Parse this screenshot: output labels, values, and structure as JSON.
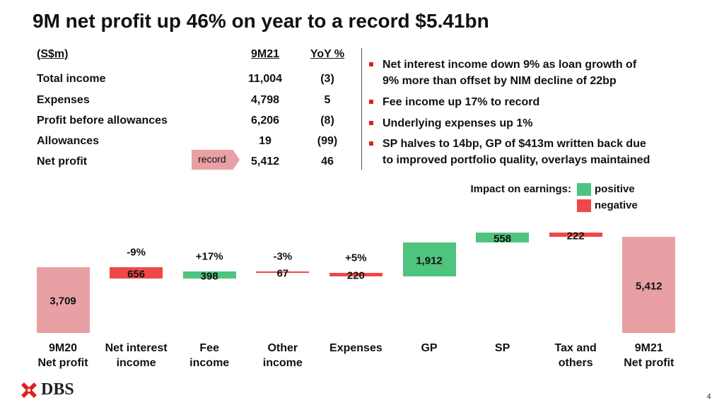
{
  "title": "9M net profit up 46% on year to a record $5.41bn",
  "table": {
    "header": [
      "(S$m)",
      "9M21",
      "YoY %"
    ],
    "rows": [
      [
        "Total income",
        "11,004",
        "(3)"
      ],
      [
        "Expenses",
        "4,798",
        "5"
      ],
      [
        "Profit before allowances",
        "6,206",
        "(8)"
      ],
      [
        "Allowances",
        "19",
        "(99)"
      ],
      [
        "Net profit",
        "5,412",
        "46"
      ]
    ],
    "callout": "record"
  },
  "bullets": [
    "Net interest income down 9% as loan growth of\n9% more than offset by NIM decline of 22bp",
    "Fee income up 17% to record",
    "Underlying expenses up 1%",
    "SP halves to 14bp, GP of $413m written back due\nto improved portfolio quality, overlays maintained"
  ],
  "chart_data": {
    "type": "waterfall",
    "legend_title": "Impact on earnings:",
    "legend": [
      {
        "label": "positive",
        "color": "#4fc47f"
      },
      {
        "label": "negative",
        "color": "#f04848"
      }
    ],
    "total_color": "#e8a0a4",
    "categories": [
      "9M20\nNet profit",
      "Net interest\nincome",
      "Fee\nincome",
      "Other\nincome",
      "Expenses",
      "GP",
      "SP",
      "Tax and\nothers",
      "9M21\nNet profit"
    ],
    "measure": [
      "total",
      "relative",
      "relative",
      "relative",
      "relative",
      "relative",
      "relative",
      "relative",
      "total"
    ],
    "values": [
      3709,
      -656,
      398,
      -67,
      -220,
      1912,
      558,
      -222,
      5412
    ],
    "value_labels": [
      "3,709",
      "656",
      "398",
      "67",
      "220",
      "1,912",
      "558",
      "222",
      "5,412"
    ],
    "change_labels": [
      null,
      "-9%",
      "+17%",
      "-3%",
      "+5%",
      null,
      null,
      null,
      null
    ]
  },
  "footer": {
    "logo": "DBS",
    "page": "4"
  }
}
